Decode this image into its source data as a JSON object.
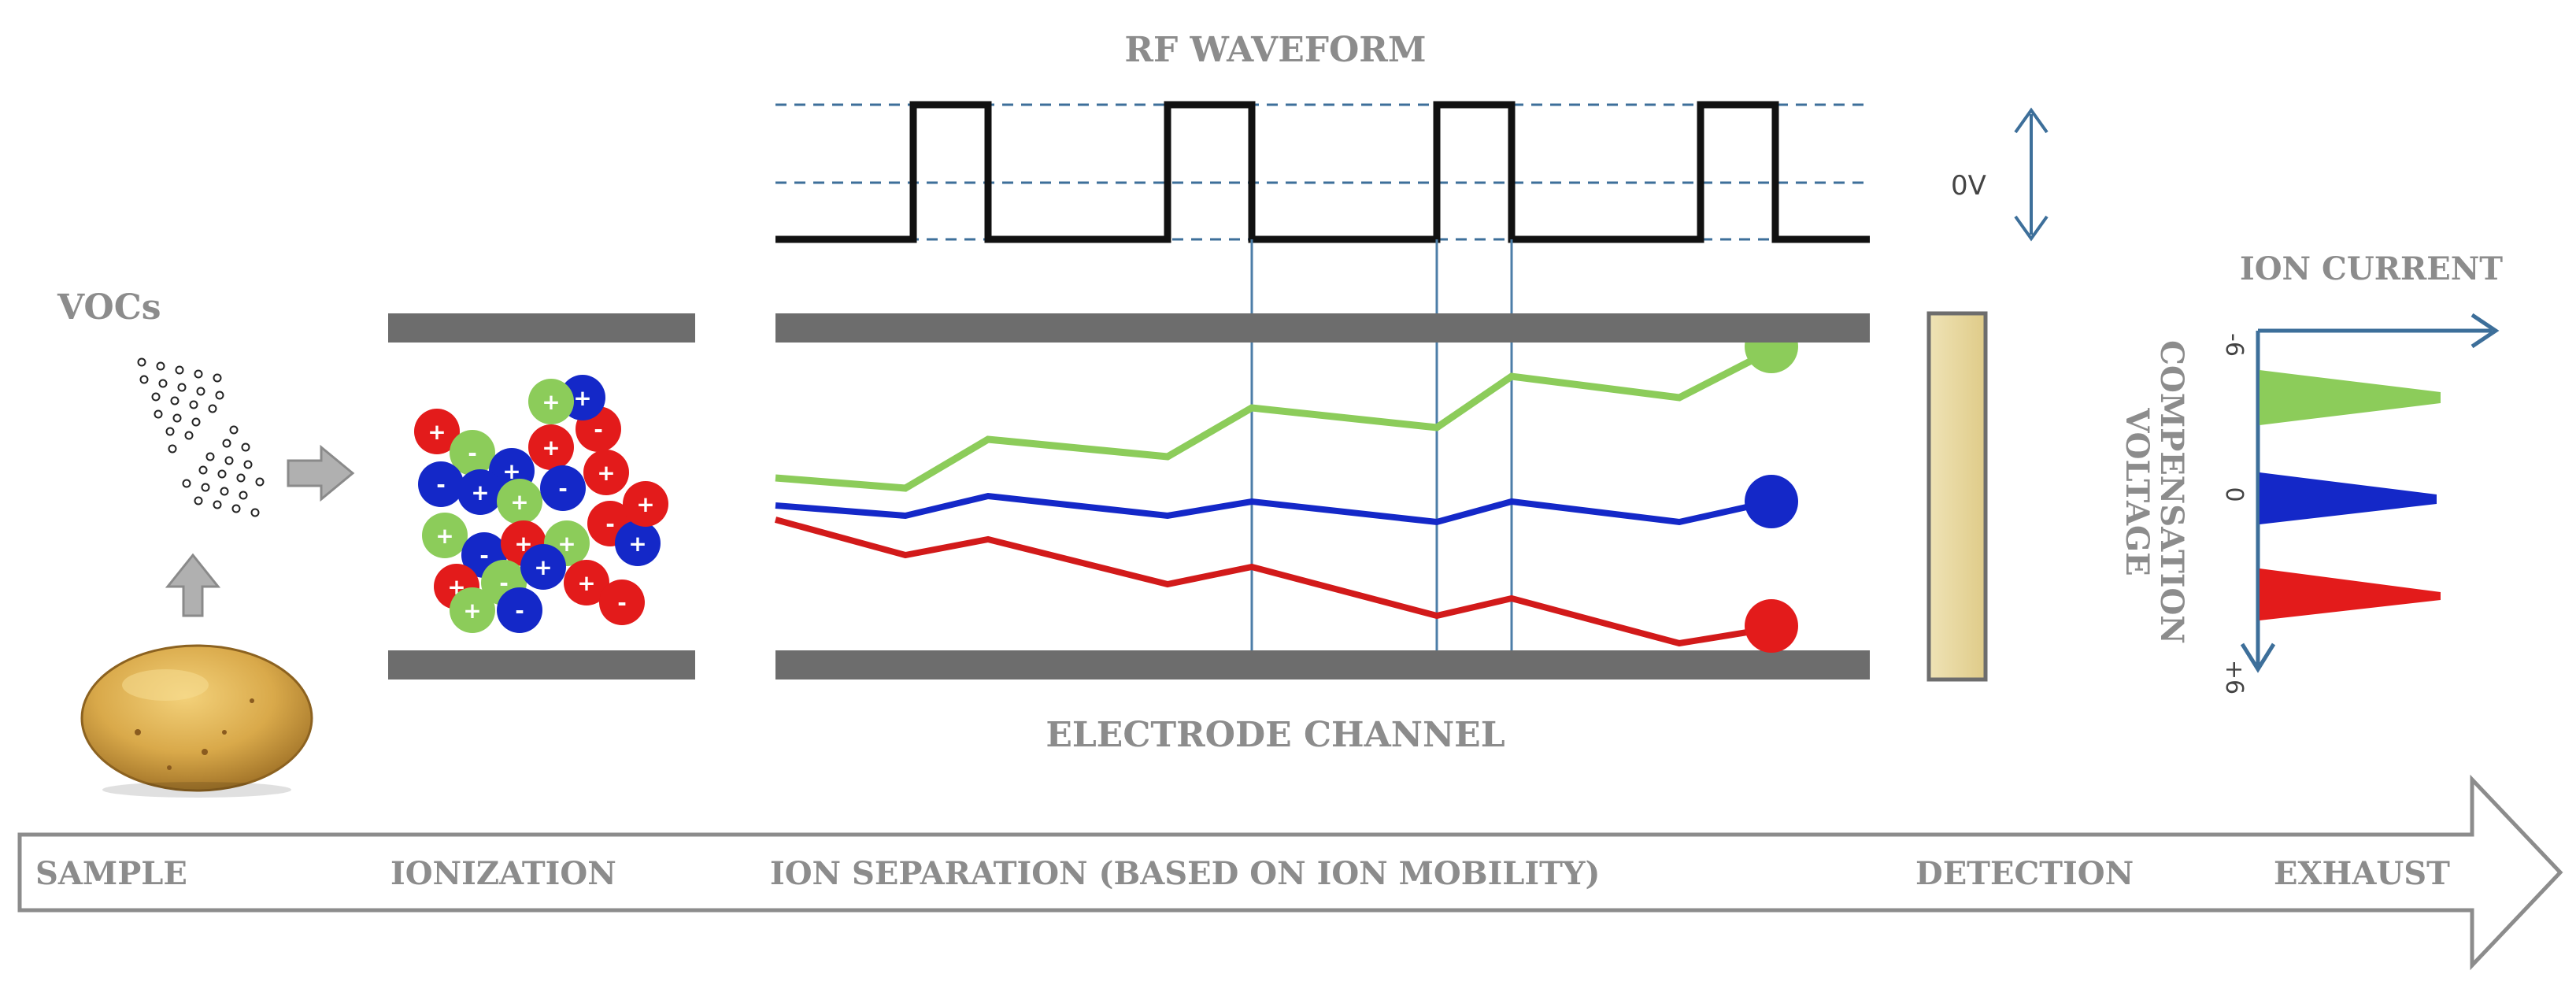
{
  "title": "RF WAVEFORM",
  "zero_volt_label": "0V",
  "vocs_label": "VOCs",
  "ion_current_label": "ION CURRENT",
  "compensation_voltage_label": "COMPENSATION\nVOLTAGE",
  "cv_ticks": {
    "top": "-6",
    "middle": "0",
    "bottom": "+6"
  },
  "electrode_channel_label": "ELECTRODE CHANNEL",
  "stages": [
    "SAMPLE",
    "IONIZATION",
    "ION SEPARATION (BASED ON ION MOBILITY)",
    "DETECTION",
    "EXHAUST"
  ],
  "ions": [
    {
      "color": "red",
      "sign": "+"
    },
    {
      "color": "green",
      "sign": "+"
    },
    {
      "color": "blue",
      "sign": "-"
    },
    {
      "color": "red",
      "sign": "+"
    },
    {
      "color": "red",
      "sign": "-"
    },
    {
      "color": "blue",
      "sign": "+"
    },
    {
      "color": "green",
      "sign": "-"
    },
    {
      "color": "blue",
      "sign": "+"
    },
    {
      "color": "red",
      "sign": "-"
    }
  ],
  "colors": {
    "red_ion": "#e31b1b",
    "green_ion": "#8ccc5a",
    "blue_ion": "#1428c8",
    "electrode": "#6d6d6d",
    "detector": "#e8d9a4",
    "axis": "#3d6f9a",
    "label": "#8c8c8c"
  }
}
